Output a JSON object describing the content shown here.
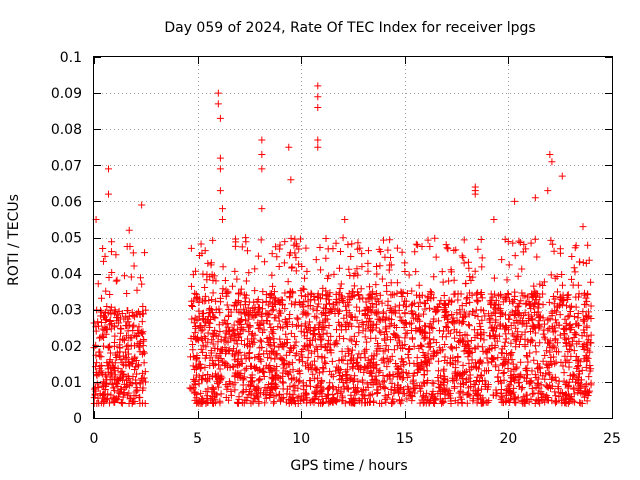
{
  "chart_data": {
    "type": "scatter",
    "title": "Day 059 of 2024, Rate Of TEC Index for receiver lpgs",
    "xlabel": "GPS time / hours",
    "ylabel": "ROTI / TECUs",
    "xlim": [
      0,
      25
    ],
    "ylim": [
      0,
      0.1
    ],
    "xticks": [
      "0",
      "5",
      "10",
      "15",
      "20",
      "25"
    ],
    "yticks": [
      "0",
      "0.01",
      "0.02",
      "0.03",
      "0.04",
      "0.05",
      "0.06",
      "0.07",
      "0.08",
      "0.09",
      "0.1"
    ],
    "grid": true,
    "marker": "+",
    "color": "#ff0000",
    "series": [
      {
        "name": "ROTI",
        "segments": [
          {
            "x_range": [
              0.0,
              2.5
            ],
            "y_base": [
              0.004,
              0.03
            ],
            "y_peak": 0.05
          },
          {
            "x_range": [
              4.6,
              24.0
            ],
            "y_base": [
              0.004,
              0.035
            ],
            "y_peak": 0.05
          }
        ],
        "notable_points": [
          {
            "x": 0.1,
            "y": 0.055
          },
          {
            "x": 0.7,
            "y": 0.069
          },
          {
            "x": 0.7,
            "y": 0.062
          },
          {
            "x": 1.7,
            "y": 0.052
          },
          {
            "x": 2.3,
            "y": 0.059
          },
          {
            "x": 4.7,
            "y": 0.047
          },
          {
            "x": 6.0,
            "y": 0.09
          },
          {
            "x": 6.0,
            "y": 0.087
          },
          {
            "x": 6.1,
            "y": 0.083
          },
          {
            "x": 6.1,
            "y": 0.072
          },
          {
            "x": 6.1,
            "y": 0.069
          },
          {
            "x": 6.1,
            "y": 0.063
          },
          {
            "x": 6.2,
            "y": 0.058
          },
          {
            "x": 6.2,
            "y": 0.055
          },
          {
            "x": 8.1,
            "y": 0.077
          },
          {
            "x": 8.1,
            "y": 0.073
          },
          {
            "x": 8.1,
            "y": 0.069
          },
          {
            "x": 8.1,
            "y": 0.058
          },
          {
            "x": 9.4,
            "y": 0.075
          },
          {
            "x": 9.5,
            "y": 0.066
          },
          {
            "x": 10.8,
            "y": 0.092
          },
          {
            "x": 10.8,
            "y": 0.089
          },
          {
            "x": 10.8,
            "y": 0.086
          },
          {
            "x": 10.8,
            "y": 0.077
          },
          {
            "x": 10.8,
            "y": 0.075
          },
          {
            "x": 12.1,
            "y": 0.055
          },
          {
            "x": 18.4,
            "y": 0.064
          },
          {
            "x": 18.4,
            "y": 0.063
          },
          {
            "x": 18.4,
            "y": 0.062
          },
          {
            "x": 19.3,
            "y": 0.055
          },
          {
            "x": 20.3,
            "y": 0.06
          },
          {
            "x": 21.3,
            "y": 0.061
          },
          {
            "x": 21.9,
            "y": 0.063
          },
          {
            "x": 22.0,
            "y": 0.073
          },
          {
            "x": 22.1,
            "y": 0.071
          },
          {
            "x": 22.6,
            "y": 0.067
          },
          {
            "x": 23.6,
            "y": 0.053
          }
        ]
      }
    ]
  }
}
